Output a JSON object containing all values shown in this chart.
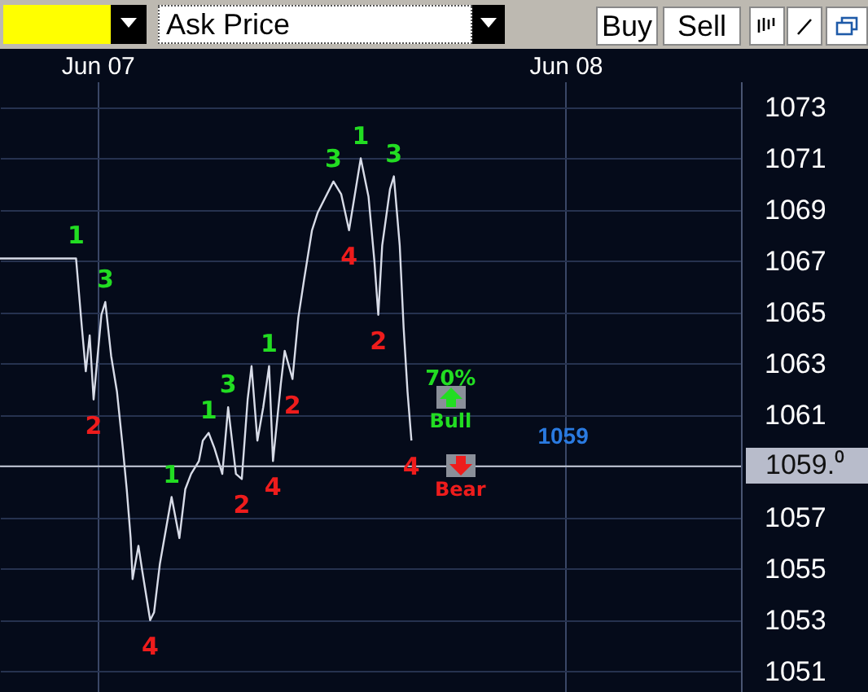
{
  "chart_data": {
    "type": "line",
    "x": [
      "--06-06T19:00",
      "--06-06T22:54",
      "--06-06T23:12",
      "--06-06T23:24",
      "--06-06T23:36",
      "--06-06T23:48",
      "--06-07T00:12",
      "--06-07T00:24",
      "--06-07T00:42",
      "--06-07T01:00",
      "--06-07T01:18",
      "--06-07T01:30",
      "--06-07T01:42",
      "--06-07T01:48",
      "--06-07T02:06",
      "--06-07T02:18",
      "--06-07T02:42",
      "--06-07T02:54",
      "--06-07T03:12",
      "--06-07T03:30",
      "--06-07T03:48",
      "--06-07T04:12",
      "--06-07T04:30",
      "--06-07T04:48",
      "--06-07T05:12",
      "--06-07T05:24",
      "--06-07T05:42",
      "--06-07T06:00",
      "--06-07T06:24",
      "--06-07T06:42",
      "--06-07T07:06",
      "--06-07T07:24",
      "--06-07T07:42",
      "--06-07T07:54",
      "--06-07T08:12",
      "--06-07T08:30",
      "--06-07T08:48",
      "--06-07T09:00",
      "--06-07T09:24",
      "--06-07T09:36",
      "--06-07T10:00",
      "--06-07T10:18",
      "--06-07T10:36",
      "--06-07T11:00",
      "--06-07T11:18",
      "--06-07T11:42",
      "--06-07T12:06",
      "--06-07T12:30",
      "--06-07T12:54",
      "--06-07T13:12",
      "--06-07T13:30",
      "--06-07T13:54",
      "--06-07T14:12",
      "--06-07T14:24",
      "--06-07T14:36",
      "--06-07T15:00",
      "--06-07T15:12",
      "--06-07T15:30",
      "--06-07T15:42",
      "--06-07T15:54",
      "--06-07T16:06"
    ],
    "series": [
      {
        "color": "#d8dce8",
        "values": [
          1067.1,
          1067.1,
          1064.4,
          1062.7,
          1064.1,
          1061.6,
          1064.9,
          1065.4,
          1063.3,
          1061.9,
          1059.7,
          1058.1,
          1056.2,
          1054.6,
          1055.9,
          1054.9,
          1053.0,
          1053.3,
          1055.2,
          1056.5,
          1057.8,
          1056.2,
          1058.1,
          1058.7,
          1059.2,
          1060.0,
          1060.3,
          1059.7,
          1058.7,
          1061.3,
          1058.7,
          1058.5,
          1061.6,
          1062.9,
          1060.0,
          1061.3,
          1062.9,
          1059.2,
          1062.2,
          1063.5,
          1062.4,
          1064.8,
          1066.3,
          1068.2,
          1068.9,
          1069.5,
          1070.1,
          1069.6,
          1068.2,
          1069.6,
          1071.0,
          1069.5,
          1067.0,
          1064.9,
          1067.6,
          1069.8,
          1070.3,
          1067.6,
          1064.4,
          1061.9,
          1060.0
        ]
      }
    ],
    "xlim": [
      "--06-06T19:00",
      "--06-08T09:00"
    ],
    "xticks": [
      {
        "value": "--06-07",
        "label": "Jun 07"
      },
      {
        "value": "--06-08",
        "label": "Jun 08"
      }
    ],
    "ylim": [
      1050.2,
      1074.0
    ],
    "yticks": [
      1051,
      1053,
      1055,
      1057,
      {
        "value": 1059,
        "label": null
      },
      1061,
      1063,
      1065,
      1067,
      1069,
      1071,
      1073
    ],
    "grid": true,
    "ref_lines": [
      {
        "axis": "y",
        "value": 1059,
        "label": "1059",
        "color": "#c8ccd8"
      }
    ],
    "annotations": [
      "Ask Price",
      "Buy",
      "Sell",
      "1059.⁰",
      "70%",
      "Bull",
      "Bear",
      {
        "text": "1",
        "x": "--06-06T22:54",
        "y": 1067.1
      },
      {
        "text": "3",
        "x": "--06-07T00:24",
        "y": 1065.4
      },
      {
        "text": "1",
        "x": "--06-07T03:48",
        "y": 1057.8
      },
      {
        "text": "1",
        "x": "--06-07T05:42",
        "y": 1060.3
      },
      {
        "text": "3",
        "x": "--06-07T06:42",
        "y": 1061.3
      },
      {
        "text": "1",
        "x": "--06-07T08:48",
        "y": 1062.9
      },
      {
        "text": "3",
        "x": "--06-07T12:06",
        "y": 1070.1
      },
      {
        "text": "1",
        "x": "--06-07T13:30",
        "y": 1071.0
      },
      {
        "text": "3",
        "x": "--06-07T15:12",
        "y": 1070.3
      },
      {
        "text": "2",
        "x": "--06-06T23:48",
        "y": 1061.6
      },
      {
        "text": "4",
        "x": "--06-07T02:42",
        "y": 1053.0
      },
      {
        "text": "2",
        "x": "--06-07T07:24",
        "y": 1058.5
      },
      {
        "text": "4",
        "x": "--06-07T09:00",
        "y": 1059.2
      },
      {
        "text": "2",
        "x": "--06-07T10:00",
        "y": 1062.4
      },
      {
        "text": "4",
        "x": "--06-07T12:54",
        "y": 1068.2
      },
      {
        "text": "2",
        "x": "--06-07T14:24",
        "y": 1064.9
      },
      {
        "text": "4",
        "x": "--06-07T16:06",
        "y": 1060.0
      }
    ]
  }
}
